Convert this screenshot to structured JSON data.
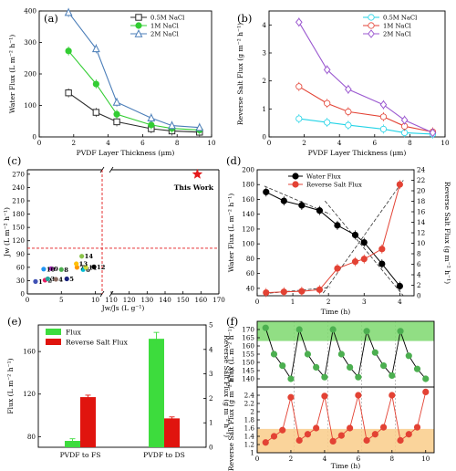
{
  "chart_data": [
    {
      "panel": "(a)",
      "type": "line",
      "xlabel": "PVDF Layer Thickness (μm)",
      "ylabel": "Water Flux (L m⁻² h⁻¹)",
      "xlim": [
        0,
        10
      ],
      "ylim": [
        0,
        400
      ],
      "xticks": [
        0,
        2,
        4,
        6,
        8,
        10
      ],
      "yticks": [
        0,
        100,
        200,
        300,
        400
      ],
      "x": [
        1.7,
        3.3,
        4.5,
        6.5,
        7.7,
        9.3
      ],
      "legend_position": "top-right",
      "series": [
        {
          "name": "0.5M NaCl",
          "color": "#2b2b2b",
          "marker": "square",
          "values": [
            140,
            78,
            48,
            26,
            19,
            15
          ]
        },
        {
          "name": "1M NaCl",
          "color": "#32cd32",
          "marker": "circle",
          "values": [
            273,
            168,
            72,
            38,
            27,
            22
          ]
        },
        {
          "name": "2M NaCl",
          "color": "#4a7db8",
          "marker": "triangle",
          "values": [
            395,
            280,
            110,
            60,
            36,
            30
          ]
        }
      ]
    },
    {
      "panel": "(b)",
      "type": "line",
      "xlabel": "PVDF Layer Thickness (μm)",
      "ylabel": "Reverse Salt Flux (g m⁻² h⁻¹)",
      "xlim": [
        0,
        10
      ],
      "ylim": [
        0,
        4.5
      ],
      "xticks": [
        0,
        2,
        4,
        6,
        8,
        10
      ],
      "yticks": [
        0,
        1,
        2,
        3,
        4
      ],
      "x": [
        1.7,
        3.3,
        4.5,
        6.5,
        7.7,
        9.3
      ],
      "legend_position": "top-right",
      "series": [
        {
          "name": "0.5M NaCl",
          "color": "#22d3e6",
          "marker": "circle",
          "values": [
            0.65,
            0.52,
            0.42,
            0.28,
            0.15,
            0.1
          ]
        },
        {
          "name": "1M NaCl",
          "color": "#e34234",
          "marker": "circle",
          "values": [
            1.8,
            1.2,
            0.9,
            0.72,
            0.38,
            0.18
          ]
        },
        {
          "name": "2M NaCl",
          "color": "#9b59d0",
          "marker": "diamond",
          "values": [
            4.1,
            2.4,
            1.7,
            1.15,
            0.6,
            0.15
          ]
        }
      ]
    },
    {
      "panel": "(c)",
      "type": "scatter",
      "xlabel": "Jw/Js (L g⁻¹)",
      "ylabel": "Jw (L m⁻² h⁻¹)",
      "xticks": [
        0,
        5,
        10,
        110,
        120,
        130,
        140,
        150,
        160,
        170
      ],
      "yticks": [
        0,
        30,
        60,
        90,
        120,
        150,
        180,
        210,
        240,
        270
      ],
      "axis_break": "x between 10 and 110",
      "threshold_lines": {
        "x": 11,
        "y": 103
      },
      "highlight": {
        "label": "This Work",
        "x": 158,
        "y": 270,
        "color": "#e41a1c"
      },
      "points": [
        {
          "label": "1",
          "x": 1.2,
          "y": 28,
          "color": "#3f51b5"
        },
        {
          "label": "2",
          "x": 2.6,
          "y": 31,
          "color": "#e91e63"
        },
        {
          "label": "3",
          "x": 3.0,
          "y": 34,
          "color": "#26a69a"
        },
        {
          "label": "4",
          "x": 4.2,
          "y": 33,
          "color": "#8d6e63"
        },
        {
          "label": "5",
          "x": 5.8,
          "y": 34,
          "color": "#1a237e"
        },
        {
          "label": "6",
          "x": 8.2,
          "y": 55,
          "color": "#00bcd4"
        },
        {
          "label": "7",
          "x": 7.3,
          "y": 60,
          "color": "#ff9800"
        },
        {
          "label": "8",
          "x": 5.0,
          "y": 55,
          "color": "#4caf50"
        },
        {
          "label": "9",
          "x": 3.5,
          "y": 57,
          "color": "#9c27b0"
        },
        {
          "label": "10",
          "x": 2.4,
          "y": 56,
          "color": "#2196f3"
        },
        {
          "label": "11",
          "x": 8.6,
          "y": 60,
          "color": "#cddc39"
        },
        {
          "label": "12",
          "x": 9.8,
          "y": 61,
          "color": "#000000"
        },
        {
          "label": "13",
          "x": 7.2,
          "y": 68,
          "color": "#ffc107"
        },
        {
          "label": "14",
          "x": 8.0,
          "y": 85,
          "color": "#8bc34a"
        }
      ]
    },
    {
      "panel": "(d)",
      "type": "line",
      "xlabel": "Time (h)",
      "ylabel": "Water Flux (L m⁻² h⁻¹)",
      "y2label": "Reverse Salt Flux (g m⁻² h⁻¹)",
      "xlim": [
        0,
        4.4
      ],
      "ylim": [
        30,
        200
      ],
      "y2lim": [
        0,
        24
      ],
      "xticks": [
        0,
        1,
        2,
        3,
        4
      ],
      "yticks": [
        40,
        60,
        80,
        100,
        120,
        140,
        160,
        180,
        200
      ],
      "y2ticks": [
        0,
        2,
        4,
        6,
        8,
        10,
        12,
        14,
        16,
        18,
        20,
        22,
        24
      ],
      "x": [
        0.25,
        0.75,
        1.25,
        1.75,
        2.25,
        2.75,
        3.0,
        3.5,
        4.0
      ],
      "legend_position": "top-center",
      "series": [
        {
          "name": "Water Flux",
          "axis": "left",
          "color": "#000000",
          "values": [
            170,
            158,
            152,
            145,
            125,
            112,
            102,
            73,
            43
          ]
        },
        {
          "name": "Reverse Salt Flux",
          "axis": "right",
          "color": "#e34234",
          "values": [
            0.6,
            0.75,
            0.85,
            1.15,
            5.2,
            6.5,
            7.0,
            8.9,
            21.2
          ]
        }
      ]
    },
    {
      "panel": "(e)",
      "type": "bar",
      "ylabel": "Flux (L m⁻² h⁻¹)",
      "y2label": "Reverse Salt Flux (g m⁻² h⁻¹)",
      "categories": [
        "PVDF to FS",
        "PVDF to DS"
      ],
      "ylim": [
        70,
        185
      ],
      "y2lim": [
        0,
        5
      ],
      "yticks": [
        80,
        120,
        160
      ],
      "y2ticks": [
        0,
        1,
        2,
        3,
        4,
        5
      ],
      "legend_position": "top-left",
      "series": [
        {
          "name": "Flux",
          "axis": "left",
          "color": "#3ddc3d",
          "values": [
            76,
            172
          ],
          "errors": [
            2,
            6
          ]
        },
        {
          "name": "Reverse Salt Flux",
          "axis": "right",
          "color": "#e0140e",
          "values": [
            2.05,
            1.18
          ],
          "errors": [
            0.08,
            0.06
          ]
        }
      ]
    },
    {
      "panel": "(f)",
      "type": "line",
      "xlabel": "Time (h)",
      "xticks": [
        0,
        2,
        4,
        6,
        8,
        10
      ],
      "xlim": [
        0,
        10.5
      ],
      "subplots": [
        {
          "ylabel": "Flux (L m⁻² h⁻¹)",
          "ylim": [
            135,
            175
          ],
          "yticks": [
            140,
            145,
            150,
            155,
            160,
            165,
            170
          ],
          "band": [
            163,
            175
          ],
          "band_color": "#7ed86e",
          "color": "#000000",
          "marker_color": "#4caf50",
          "x": [
            0.5,
            1.0,
            1.5,
            2.0,
            2.5,
            3.0,
            3.5,
            4.0,
            4.5,
            5.0,
            5.5,
            6.0,
            6.5,
            7.0,
            7.5,
            8.0,
            8.5,
            9.0,
            9.5,
            10.0
          ],
          "values": [
            171,
            155,
            148,
            140,
            170,
            155,
            147,
            141,
            170,
            155,
            147,
            141,
            169,
            156,
            148,
            142,
            169,
            154,
            146,
            140
          ]
        },
        {
          "ylabel": "Reverse Salt Flux (g m⁻² h⁻¹)",
          "ylim": [
            1.0,
            2.6
          ],
          "yticks": [
            1.0,
            1.2,
            1.4,
            1.6,
            1.8,
            2.0,
            2.2,
            2.4
          ],
          "band": [
            1.0,
            1.58
          ],
          "band_color": "#f9cc8a",
          "color": "#e34234",
          "marker_color": "#e34234",
          "x": [
            0.5,
            1.0,
            1.5,
            2.0,
            2.5,
            3.0,
            3.5,
            4.0,
            4.5,
            5.0,
            5.5,
            6.0,
            6.5,
            7.0,
            7.5,
            8.0,
            8.5,
            9.0,
            9.5,
            10.0
          ],
          "values": [
            1.25,
            1.4,
            1.55,
            2.35,
            1.3,
            1.45,
            1.6,
            2.38,
            1.28,
            1.42,
            1.6,
            2.4,
            1.3,
            1.45,
            1.62,
            2.4,
            1.3,
            1.45,
            1.62,
            2.48
          ]
        }
      ]
    }
  ]
}
